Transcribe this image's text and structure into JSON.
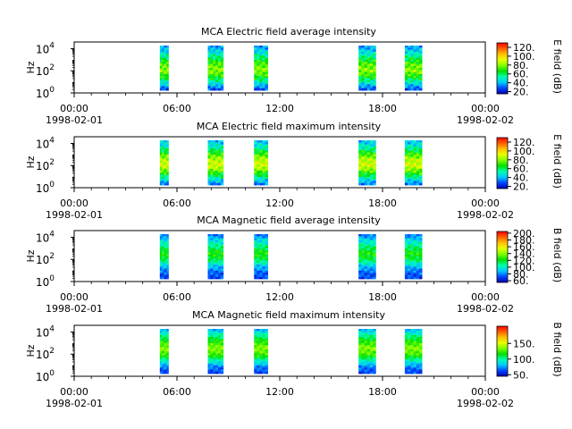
{
  "figure": {
    "x_ticks": [
      "00:00",
      "06:00",
      "12:00",
      "18:00",
      "00:00"
    ],
    "x_tick_hours": [
      0,
      6,
      12,
      18,
      24
    ],
    "date_start": "1998-02-01",
    "date_end": "1998-02-02",
    "colormap_stops": [
      "#0000b0",
      "#0044ff",
      "#00c8ff",
      "#00ffb0",
      "#00e000",
      "#80ff00",
      "#e8ff00",
      "#ffc000",
      "#ff6000",
      "#ff0000"
    ]
  },
  "chart_data": [
    {
      "type": "heatmap",
      "title": "MCA  Electric field average intensity",
      "ylabel": "Hz",
      "y_scale": "log",
      "ylim": [
        1,
        40000
      ],
      "y_ticks": [
        {
          "base": "10",
          "exp": "0"
        },
        {
          "base": "10",
          "exp": "2"
        },
        {
          "base": "10",
          "exp": "4"
        }
      ],
      "x_range_hours": [
        0,
        24
      ],
      "colorbar": {
        "label": "E field (dB)",
        "range": [
          15,
          130
        ],
        "ticks": [
          "20.",
          "40.",
          "60.",
          "80.",
          "100.",
          "120."
        ],
        "tick_values": [
          20,
          40,
          60,
          80,
          100,
          120
        ]
      },
      "data_intervals_hours": [
        [
          5.0,
          5.5
        ],
        [
          7.8,
          8.7
        ],
        [
          10.5,
          11.3
        ],
        [
          16.6,
          17.6
        ],
        [
          19.3,
          20.3
        ]
      ],
      "band_levels_dB": [
        25,
        45,
        65,
        80,
        75,
        60,
        45,
        35
      ]
    },
    {
      "type": "heatmap",
      "title": "MCA  Electric field maximum intensity",
      "ylabel": "Hz",
      "y_scale": "log",
      "ylim": [
        1,
        40000
      ],
      "y_ticks": [
        {
          "base": "10",
          "exp": "0"
        },
        {
          "base": "10",
          "exp": "2"
        },
        {
          "base": "10",
          "exp": "4"
        }
      ],
      "x_range_hours": [
        0,
        24
      ],
      "colorbar": {
        "label": "E field (dB)",
        "range": [
          15,
          130
        ],
        "ticks": [
          "20.",
          "40.",
          "60.",
          "80.",
          "100.",
          "120."
        ],
        "tick_values": [
          20,
          40,
          60,
          80,
          100,
          120
        ]
      },
      "data_intervals_hours": [
        [
          5.0,
          5.5
        ],
        [
          7.8,
          8.7
        ],
        [
          10.5,
          11.3
        ],
        [
          16.6,
          17.6
        ],
        [
          19.3,
          20.3
        ]
      ],
      "band_levels_dB": [
        30,
        50,
        72,
        90,
        85,
        68,
        50,
        40
      ]
    },
    {
      "type": "heatmap",
      "title": "MCA  Magnetic field average intensity",
      "ylabel": "Hz",
      "y_scale": "log",
      "ylim": [
        1,
        40000
      ],
      "y_ticks": [
        {
          "base": "10",
          "exp": "0"
        },
        {
          "base": "10",
          "exp": "2"
        },
        {
          "base": "10",
          "exp": "4"
        }
      ],
      "x_range_hours": [
        0,
        24
      ],
      "colorbar": {
        "label": "B field (dB)",
        "range": [
          55,
          205
        ],
        "ticks": [
          "60.",
          "80.",
          "100.",
          "120.",
          "140.",
          "160.",
          "180.",
          "200."
        ],
        "tick_values": [
          60,
          80,
          100,
          120,
          140,
          160,
          180,
          200
        ]
      },
      "data_intervals_hours": [
        [
          5.0,
          5.5
        ],
        [
          7.8,
          8.7
        ],
        [
          10.5,
          11.3
        ],
        [
          16.6,
          17.6
        ],
        [
          19.3,
          20.3
        ]
      ],
      "band_levels_dB": [
        70,
        75,
        90,
        115,
        125,
        110,
        95,
        75
      ]
    },
    {
      "type": "heatmap",
      "title": "MCA  Magnetic field maximum intensity",
      "ylabel": "Hz",
      "y_scale": "log",
      "ylim": [
        1,
        40000
      ],
      "y_ticks": [
        {
          "base": "10",
          "exp": "0"
        },
        {
          "base": "10",
          "exp": "2"
        },
        {
          "base": "10",
          "exp": "4"
        }
      ],
      "x_range_hours": [
        0,
        24
      ],
      "colorbar": {
        "label": "B field (dB)",
        "range": [
          45,
          205
        ],
        "ticks": [
          "50.",
          "100.",
          "150."
        ],
        "tick_values": [
          50,
          100,
          150
        ]
      },
      "data_intervals_hours": [
        [
          5.0,
          5.5
        ],
        [
          7.8,
          8.7
        ],
        [
          10.5,
          11.3
        ],
        [
          16.6,
          17.6
        ],
        [
          19.3,
          20.3
        ]
      ],
      "band_levels_dB": [
        60,
        70,
        95,
        125,
        135,
        120,
        100,
        75
      ]
    }
  ]
}
